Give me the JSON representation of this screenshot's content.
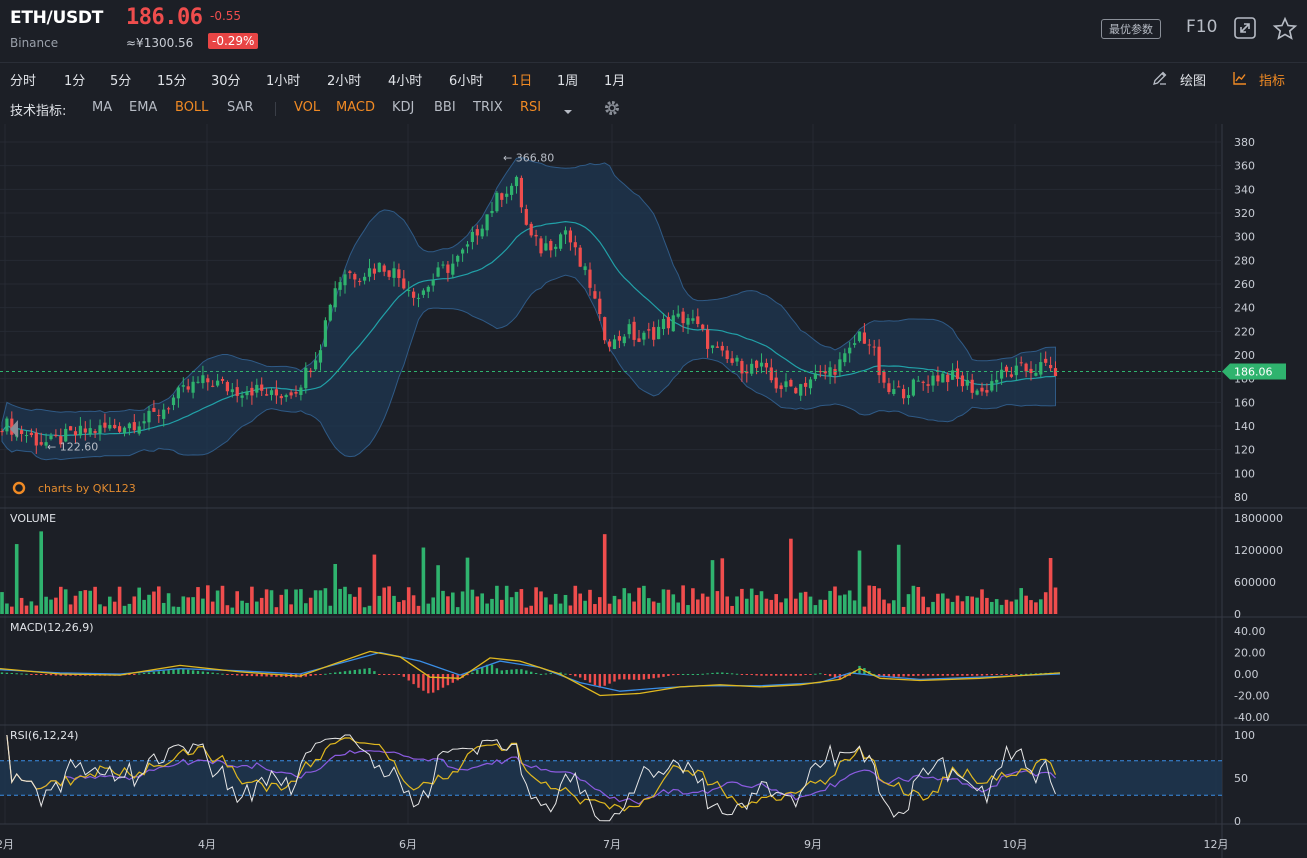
{
  "header": {
    "symbol": "ETH/USDT",
    "exchange": "Binance",
    "price": "186.06",
    "change": "-0.55",
    "cny_price": "≈¥1300.56",
    "change_pct": "-0.29%",
    "best_params_label": "最优参数",
    "f10_label": "F10"
  },
  "timeframes": [
    "分时",
    "1分",
    "5分",
    "15分",
    "30分",
    "1小时",
    "2小时",
    "4小时",
    "6小时",
    "1日",
    "1周",
    "1月"
  ],
  "active_timeframe": "1日",
  "tools": {
    "draw_label": "绘图",
    "indicator_label": "指标"
  },
  "indicator_bar": {
    "label": "技术指标:",
    "main": [
      "MA",
      "EMA",
      "BOLL",
      "SAR"
    ],
    "sub": [
      "VOL",
      "MACD",
      "KDJ",
      "BBI",
      "TRIX",
      "RSI"
    ],
    "active": [
      "BOLL",
      "VOL",
      "MACD",
      "RSI"
    ]
  },
  "watermark": "charts by QKL123",
  "colors": {
    "up": "#2fb36e",
    "down": "#ef4d4d",
    "accent": "#f08a24",
    "boll_mid": "#21a1a8",
    "band_fill": "#1e3752",
    "macd_dif": "#e0b81f",
    "macd_dea": "#3a8ee6",
    "rsi_fast": "#e6e6e6",
    "rsi_mid": "#e0b81f",
    "rsi_slow": "#8b5be0"
  },
  "chart_data": [
    {
      "type": "candlestick",
      "panel": "main",
      "current_price": 186.06,
      "current_price_label": "186.06",
      "max_label": "366.80",
      "min_label": "122.60",
      "yticks": [
        "380",
        "360",
        "340",
        "320",
        "300",
        "280",
        "260",
        "240",
        "220",
        "200",
        "180",
        "160",
        "140",
        "120",
        "100",
        "80"
      ],
      "ylim": [
        80,
        380
      ],
      "xticks": [
        "2月",
        "4月",
        "6月",
        "7月",
        "9月",
        "10月",
        "12月"
      ],
      "trend_points": [
        [
          0,
          142
        ],
        [
          10,
          138
        ],
        [
          20,
          133
        ],
        [
          30,
          127
        ],
        [
          40,
          125
        ],
        [
          50,
          130
        ],
        [
          60,
          133
        ],
        [
          70,
          136
        ],
        [
          80,
          137
        ],
        [
          90,
          139
        ],
        [
          100,
          141
        ],
        [
          110,
          144
        ],
        [
          120,
          146
        ],
        [
          130,
          153
        ],
        [
          140,
          163
        ],
        [
          150,
          170
        ],
        [
          160,
          176
        ],
        [
          170,
          178
        ],
        [
          180,
          174
        ],
        [
          190,
          170
        ],
        [
          200,
          172
        ],
        [
          210,
          170
        ],
        [
          220,
          165
        ],
        [
          230,
          168
        ],
        [
          240,
          172
        ],
        [
          250,
          188
        ],
        [
          260,
          210
        ],
        [
          270,
          255
        ],
        [
          280,
          270
        ],
        [
          290,
          268
        ],
        [
          300,
          272
        ],
        [
          310,
          276
        ],
        [
          320,
          270
        ],
        [
          330,
          260
        ],
        [
          340,
          250
        ],
        [
          350,
          262
        ],
        [
          360,
          272
        ],
        [
          370,
          278
        ],
        [
          380,
          290
        ],
        [
          390,
          310
        ],
        [
          400,
          325
        ],
        [
          410,
          340
        ],
        [
          420,
          345
        ],
        [
          430,
          300
        ],
        [
          440,
          290
        ],
        [
          450,
          296
        ],
        [
          460,
          306
        ],
        [
          470,
          280
        ],
        [
          480,
          260
        ],
        [
          490,
          220
        ],
        [
          500,
          210
        ],
        [
          510,
          222
        ],
        [
          520,
          212
        ],
        [
          530,
          218
        ],
        [
          540,
          226
        ],
        [
          550,
          230
        ],
        [
          560,
          232
        ],
        [
          570,
          220
        ],
        [
          580,
          205
        ],
        [
          590,
          196
        ],
        [
          600,
          192
        ],
        [
          610,
          190
        ],
        [
          620,
          188
        ],
        [
          630,
          176
        ],
        [
          640,
          172
        ],
        [
          650,
          174
        ],
        [
          660,
          180
        ],
        [
          670,
          183
        ],
        [
          680,
          190
        ],
        [
          690,
          198
        ],
        [
          700,
          218
        ],
        [
          710,
          208
        ],
        [
          720,
          170
        ],
        [
          730,
          168
        ],
        [
          740,
          172
        ],
        [
          750,
          176
        ],
        [
          760,
          181
        ],
        [
          770,
          184
        ],
        [
          780,
          178
        ],
        [
          790,
          174
        ],
        [
          800,
          168
        ],
        [
          810,
          180
        ],
        [
          820,
          184
        ],
        [
          830,
          186
        ],
        [
          840,
          188
        ],
        [
          850,
          190
        ],
        [
          860,
          186
        ]
      ]
    },
    {
      "type": "bar",
      "panel": "volume",
      "title": "VOLUME",
      "yticks": [
        "1800000",
        "1200000",
        "600000",
        "0"
      ],
      "ylim": [
        0,
        1800000
      ]
    },
    {
      "type": "line",
      "panel": "macd",
      "title": "MACD(12,26,9)",
      "yticks": [
        "40.00",
        "20.00",
        "0.00",
        "-20.00",
        "-40.00"
      ],
      "ylim": [
        -40,
        40
      ],
      "series": [
        {
          "name": "DIF",
          "points": [
            [
              0,
              5
            ],
            [
              60,
              0
            ],
            [
              120,
              -1
            ],
            [
              180,
              8
            ],
            [
              240,
              2
            ],
            [
              300,
              -2
            ],
            [
              330,
              8
            ],
            [
              370,
              21
            ],
            [
              400,
              16
            ],
            [
              430,
              -3
            ],
            [
              460,
              -4
            ],
            [
              490,
              15
            ],
            [
              520,
              12
            ],
            [
              560,
              0
            ],
            [
              600,
              -20
            ],
            [
              640,
              -18
            ],
            [
              680,
              -12
            ],
            [
              720,
              -10
            ],
            [
              760,
              -12
            ],
            [
              800,
              -10
            ],
            [
              840,
              -5
            ],
            [
              860,
              5
            ],
            [
              880,
              -4
            ],
            [
              920,
              -6
            ],
            [
              980,
              -4
            ],
            [
              1060,
              1
            ]
          ]
        },
        {
          "name": "DEA",
          "points": [
            [
              0,
              4
            ],
            [
              60,
              1
            ],
            [
              120,
              0
            ],
            [
              180,
              5
            ],
            [
              240,
              3
            ],
            [
              300,
              0
            ],
            [
              340,
              10
            ],
            [
              380,
              20
            ],
            [
              420,
              12
            ],
            [
              460,
              -1
            ],
            [
              500,
              12
            ],
            [
              540,
              6
            ],
            [
              580,
              -8
            ],
            [
              620,
              -16
            ],
            [
              660,
              -13
            ],
            [
              700,
              -11
            ],
            [
              760,
              -11
            ],
            [
              820,
              -8
            ],
            [
              850,
              1
            ],
            [
              880,
              -2
            ],
            [
              920,
              -5
            ],
            [
              980,
              -3
            ],
            [
              1060,
              0
            ]
          ]
        }
      ]
    },
    {
      "type": "line",
      "panel": "rsi",
      "title": "RSI(6,12,24)",
      "yticks": [
        "100",
        "50",
        "0"
      ],
      "ylim": [
        0,
        100
      ],
      "band": [
        30,
        70
      ]
    }
  ]
}
